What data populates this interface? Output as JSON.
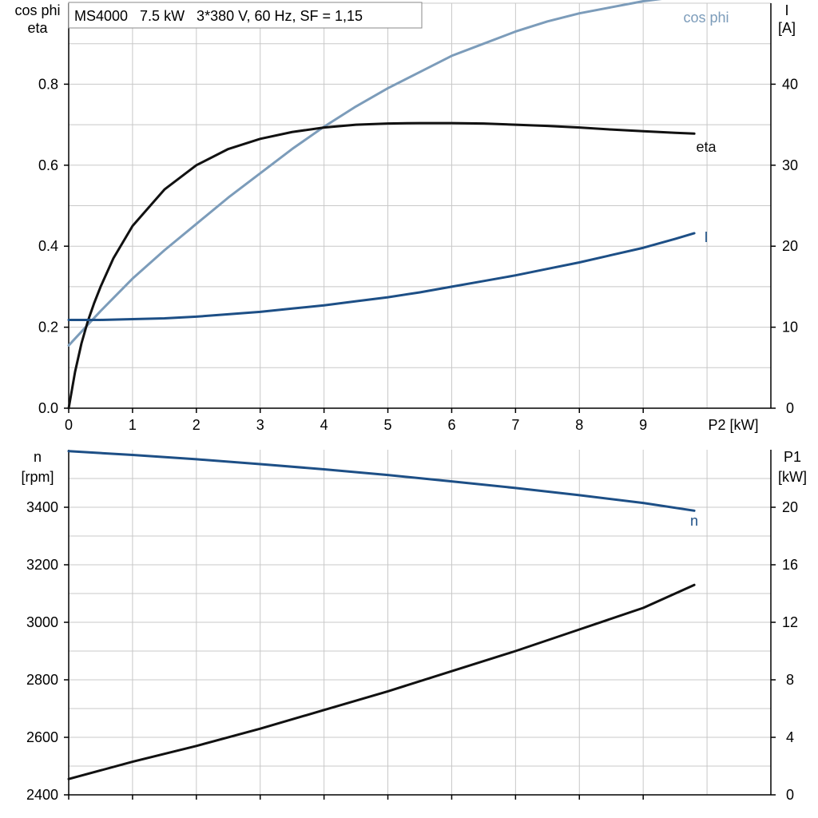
{
  "title": "MS4000   7.5 kW   3*380 V, 60 Hz, SF = 1,15",
  "colors": {
    "black": "#111111",
    "dark_blue": "#1d4f86",
    "light_blue": "#7c9cba",
    "grid": "#c8c8c8"
  },
  "chart_data": [
    {
      "type": "line",
      "xlabel": "P2 [kW]",
      "xlim": [
        0,
        11
      ],
      "x_ticks": [
        0,
        1,
        2,
        3,
        4,
        5,
        6,
        7,
        8,
        9
      ],
      "y_left": {
        "label_lines": [
          "cos phi",
          "eta"
        ],
        "ylim": [
          0,
          1.0
        ],
        "ticks": [
          0.0,
          0.2,
          0.4,
          0.6,
          0.8
        ]
      },
      "y_right": {
        "label_lines": [
          "I",
          "[A]"
        ],
        "ylim": [
          0,
          50
        ],
        "ticks": [
          0,
          10,
          20,
          30,
          40
        ]
      },
      "grid": true,
      "series": [
        {
          "name": "cos phi",
          "axis": "left",
          "color": "#7c9cba",
          "x": [
            0,
            0.5,
            1,
            1.5,
            2,
            2.5,
            3,
            3.5,
            4,
            4.5,
            5,
            5.5,
            6,
            6.5,
            7,
            7.5,
            8,
            8.5,
            9,
            9.5,
            9.8
          ],
          "y": [
            0.155,
            0.24,
            0.32,
            0.39,
            0.455,
            0.52,
            0.58,
            0.64,
            0.695,
            0.745,
            0.79,
            0.83,
            0.87,
            0.9,
            0.93,
            0.955,
            0.975,
            0.99,
            1.005,
            1.015,
            1.02
          ]
        },
        {
          "name": "eta",
          "axis": "left",
          "color": "#111111",
          "x": [
            0,
            0.1,
            0.2,
            0.3,
            0.4,
            0.5,
            0.7,
            1,
            1.5,
            2,
            2.5,
            3,
            3.5,
            4,
            4.5,
            5,
            5.5,
            6,
            6.5,
            7,
            7.5,
            8,
            8.5,
            9,
            9.5,
            9.8
          ],
          "y": [
            0.0,
            0.09,
            0.16,
            0.215,
            0.26,
            0.3,
            0.37,
            0.45,
            0.54,
            0.6,
            0.64,
            0.665,
            0.682,
            0.693,
            0.7,
            0.703,
            0.704,
            0.704,
            0.703,
            0.7,
            0.697,
            0.693,
            0.688,
            0.684,
            0.68,
            0.678
          ]
        },
        {
          "name": "I",
          "axis": "right",
          "color": "#1d4f86",
          "x": [
            0,
            0.5,
            1,
            1.5,
            2,
            2.5,
            3,
            3.5,
            4,
            4.5,
            5,
            5.5,
            6,
            6.5,
            7,
            7.5,
            8,
            8.5,
            9,
            9.5,
            9.8
          ],
          "y": [
            10.9,
            10.9,
            11.0,
            11.1,
            11.3,
            11.6,
            11.9,
            12.3,
            12.7,
            13.2,
            13.7,
            14.3,
            15.0,
            15.7,
            16.4,
            17.2,
            18.0,
            18.9,
            19.8,
            20.9,
            21.6
          ]
        }
      ]
    },
    {
      "type": "line",
      "xlabel": "",
      "xlim": [
        0,
        11
      ],
      "x_ticks": [
        0,
        1,
        2,
        3,
        4,
        5,
        6,
        7,
        8,
        9
      ],
      "y_left": {
        "label_lines": [
          "n",
          "[rpm]"
        ],
        "ylim": [
          2400,
          3600
        ],
        "ticks": [
          2400,
          2600,
          2800,
          3000,
          3200,
          3400
        ]
      },
      "y_right": {
        "label_lines": [
          "P1",
          "[kW]"
        ],
        "ylim": [
          0,
          24
        ],
        "ticks": [
          0,
          4,
          8,
          12,
          16,
          20
        ]
      },
      "grid": true,
      "series": [
        {
          "name": "n",
          "axis": "left",
          "color": "#1d4f86",
          "x": [
            0,
            1,
            2,
            3,
            4,
            5,
            6,
            7,
            8,
            9,
            9.8
          ],
          "y": [
            3595,
            3582,
            3567,
            3550,
            3532,
            3512,
            3490,
            3467,
            3442,
            3415,
            3388
          ]
        },
        {
          "axis": "right",
          "color": "#111111",
          "x": [
            0,
            1,
            2,
            3,
            4,
            5,
            6,
            7,
            8,
            9,
            9.8
          ],
          "y": [
            1.1,
            2.3,
            3.4,
            4.6,
            5.9,
            7.2,
            8.6,
            10.0,
            11.5,
            13.0,
            14.6
          ]
        }
      ]
    }
  ]
}
